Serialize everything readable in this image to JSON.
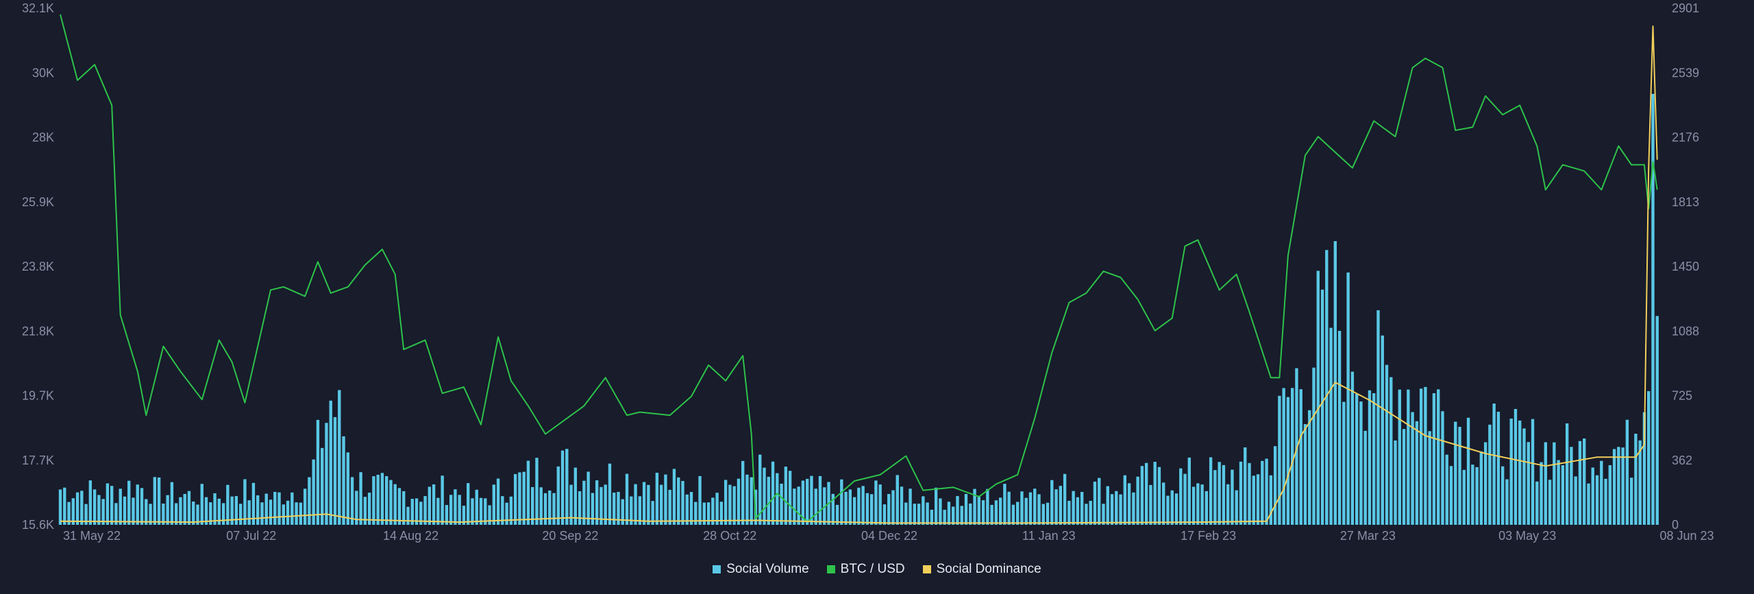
{
  "chart_data": {
    "type": "bar+line",
    "title": "",
    "x_ticks": [
      "31 May 22",
      "07 Jul 22",
      "14 Aug 22",
      "20 Sep 22",
      "28 Oct 22",
      "04 Dec 22",
      "11 Jan 23",
      "17 Feb 23",
      "27 Mar 23",
      "03 May 23",
      "08 Jun 23"
    ],
    "x_range": [
      "2022-05-31",
      "2023-06-08"
    ],
    "left_axis": {
      "series": "BTC / USD",
      "ticks": [
        "15.6K",
        "17.7K",
        "19.7K",
        "21.8K",
        "23.8K",
        "25.9K",
        "28K",
        "30K",
        "32.1K"
      ],
      "range": [
        15600,
        32100
      ]
    },
    "right_axis": {
      "series": "Social Volume / Social Dominance",
      "ticks": [
        "0",
        "362",
        "725",
        "1088",
        "1450",
        "1813",
        "2176",
        "2539",
        "2901"
      ],
      "range": [
        0,
        2901
      ]
    },
    "grid": false,
    "legend_position": "bottom-center",
    "series": [
      {
        "name": "BTC / USD",
        "kind": "line",
        "axis": "left",
        "color": "#2ec24a",
        "points": [
          [
            "2022-05-31",
            31900
          ],
          [
            "2022-06-04",
            29800
          ],
          [
            "2022-06-08",
            30300
          ],
          [
            "2022-06-12",
            29000
          ],
          [
            "2022-06-14",
            22300
          ],
          [
            "2022-06-18",
            20500
          ],
          [
            "2022-06-20",
            19100
          ],
          [
            "2022-06-24",
            21300
          ],
          [
            "2022-06-28",
            20500
          ],
          [
            "2022-07-03",
            19600
          ],
          [
            "2022-07-07",
            21500
          ],
          [
            "2022-07-10",
            20800
          ],
          [
            "2022-07-13",
            19500
          ],
          [
            "2022-07-19",
            23100
          ],
          [
            "2022-07-22",
            23200
          ],
          [
            "2022-07-27",
            22900
          ],
          [
            "2022-07-30",
            24000
          ],
          [
            "2022-08-02",
            23000
          ],
          [
            "2022-08-06",
            23200
          ],
          [
            "2022-08-10",
            23900
          ],
          [
            "2022-08-14",
            24400
          ],
          [
            "2022-08-17",
            23600
          ],
          [
            "2022-08-19",
            21200
          ],
          [
            "2022-08-24",
            21500
          ],
          [
            "2022-08-28",
            19800
          ],
          [
            "2022-09-02",
            20000
          ],
          [
            "2022-09-06",
            18800
          ],
          [
            "2022-09-10",
            21600
          ],
          [
            "2022-09-13",
            20200
          ],
          [
            "2022-09-17",
            19400
          ],
          [
            "2022-09-21",
            18500
          ],
          [
            "2022-09-25",
            18900
          ],
          [
            "2022-09-30",
            19400
          ],
          [
            "2022-10-05",
            20300
          ],
          [
            "2022-10-10",
            19100
          ],
          [
            "2022-10-13",
            19200
          ],
          [
            "2022-10-20",
            19100
          ],
          [
            "2022-10-25",
            19700
          ],
          [
            "2022-10-29",
            20700
          ],
          [
            "2022-11-02",
            20200
          ],
          [
            "2022-11-06",
            21000
          ],
          [
            "2022-11-08",
            18500
          ],
          [
            "2022-11-09",
            15800
          ],
          [
            "2022-11-14",
            16600
          ],
          [
            "2022-11-21",
            15700
          ],
          [
            "2022-11-27",
            16400
          ],
          [
            "2022-12-02",
            17000
          ],
          [
            "2022-12-08",
            17200
          ],
          [
            "2022-12-14",
            17800
          ],
          [
            "2022-12-18",
            16700
          ],
          [
            "2022-12-25",
            16800
          ],
          [
            "2022-12-31",
            16500
          ],
          [
            "2023-01-04",
            16900
          ],
          [
            "2023-01-09",
            17200
          ],
          [
            "2023-01-13",
            19000
          ],
          [
            "2023-01-17",
            21100
          ],
          [
            "2023-01-21",
            22700
          ],
          [
            "2023-01-25",
            23000
          ],
          [
            "2023-01-29",
            23700
          ],
          [
            "2023-02-02",
            23500
          ],
          [
            "2023-02-06",
            22800
          ],
          [
            "2023-02-10",
            21800
          ],
          [
            "2023-02-14",
            22200
          ],
          [
            "2023-02-17",
            24500
          ],
          [
            "2023-02-20",
            24700
          ],
          [
            "2023-02-25",
            23100
          ],
          [
            "2023-03-01",
            23600
          ],
          [
            "2023-03-04",
            22400
          ],
          [
            "2023-03-09",
            20300
          ],
          [
            "2023-03-11",
            20300
          ],
          [
            "2023-03-13",
            24200
          ],
          [
            "2023-03-17",
            27400
          ],
          [
            "2023-03-20",
            28000
          ],
          [
            "2023-03-24",
            27500
          ],
          [
            "2023-03-28",
            27000
          ],
          [
            "2023-04-02",
            28500
          ],
          [
            "2023-04-07",
            28000
          ],
          [
            "2023-04-11",
            30200
          ],
          [
            "2023-04-14",
            30500
          ],
          [
            "2023-04-18",
            30200
          ],
          [
            "2023-04-21",
            28200
          ],
          [
            "2023-04-25",
            28300
          ],
          [
            "2023-04-28",
            29300
          ],
          [
            "2023-05-02",
            28700
          ],
          [
            "2023-05-06",
            29000
          ],
          [
            "2023-05-10",
            27700
          ],
          [
            "2023-05-12",
            26300
          ],
          [
            "2023-05-16",
            27100
          ],
          [
            "2023-05-21",
            26900
          ],
          [
            "2023-05-25",
            26300
          ],
          [
            "2023-05-29",
            27700
          ],
          [
            "2023-06-01",
            27100
          ],
          [
            "2023-06-04",
            27100
          ],
          [
            "2023-06-05",
            25700
          ],
          [
            "2023-06-06",
            27200
          ],
          [
            "2023-06-07",
            26300
          ]
        ]
      },
      {
        "name": "Social Volume",
        "kind": "bar",
        "axis": "right",
        "color": "#5ac8e6",
        "points": [
          [
            "2022-05-31",
            200
          ],
          [
            "2022-06-10",
            180
          ],
          [
            "2022-06-17",
            220
          ],
          [
            "2022-06-26",
            170
          ],
          [
            "2022-07-03",
            160
          ],
          [
            "2022-07-12",
            190
          ],
          [
            "2022-07-20",
            150
          ],
          [
            "2022-07-28",
            230
          ],
          [
            "2022-08-02",
            700
          ],
          [
            "2022-08-05",
            520
          ],
          [
            "2022-08-08",
            250
          ],
          [
            "2022-08-16",
            190
          ],
          [
            "2022-08-22",
            170
          ],
          [
            "2022-08-29",
            200
          ],
          [
            "2022-09-06",
            140
          ],
          [
            "2022-09-13",
            230
          ],
          [
            "2022-09-20",
            300
          ],
          [
            "2022-09-27",
            330
          ],
          [
            "2022-10-04",
            280
          ],
          [
            "2022-10-12",
            250
          ],
          [
            "2022-10-20",
            230
          ],
          [
            "2022-10-28",
            200
          ],
          [
            "2022-11-05",
            250
          ],
          [
            "2022-11-09",
            300
          ],
          [
            "2022-11-16",
            230
          ],
          [
            "2022-11-24",
            190
          ],
          [
            "2022-12-03",
            170
          ],
          [
            "2022-12-11",
            200
          ],
          [
            "2022-12-19",
            150
          ],
          [
            "2022-12-27",
            140
          ],
          [
            "2023-01-04",
            160
          ],
          [
            "2023-01-12",
            200
          ],
          [
            "2023-01-20",
            210
          ],
          [
            "2023-01-28",
            200
          ],
          [
            "2023-02-05",
            240
          ],
          [
            "2023-02-13",
            260
          ],
          [
            "2023-02-21",
            270
          ],
          [
            "2023-03-01",
            290
          ],
          [
            "2023-03-08",
            350
          ],
          [
            "2023-03-13",
            700
          ],
          [
            "2023-03-18",
            950
          ],
          [
            "2023-03-24",
            1200
          ],
          [
            "2023-03-30",
            900
          ],
          [
            "2023-04-06",
            800
          ],
          [
            "2023-04-13",
            750
          ],
          [
            "2023-04-20",
            600
          ],
          [
            "2023-04-27",
            500
          ],
          [
            "2023-05-05",
            450
          ],
          [
            "2023-05-12",
            420
          ],
          [
            "2023-05-19",
            400
          ],
          [
            "2023-05-26",
            430
          ],
          [
            "2023-06-01",
            420
          ],
          [
            "2023-06-05",
            1100
          ],
          [
            "2023-06-06",
            2860
          ],
          [
            "2023-06-07",
            1800
          ]
        ]
      },
      {
        "name": "Social Dominance",
        "kind": "line",
        "axis": "right",
        "color": "#f1cf5a",
        "points": [
          [
            "2022-05-31",
            20
          ],
          [
            "2022-07-01",
            15
          ],
          [
            "2022-08-01",
            60
          ],
          [
            "2022-08-08",
            30
          ],
          [
            "2022-09-01",
            15
          ],
          [
            "2022-09-27",
            40
          ],
          [
            "2022-10-15",
            20
          ],
          [
            "2022-11-09",
            25
          ],
          [
            "2022-12-10",
            10
          ],
          [
            "2023-01-10",
            10
          ],
          [
            "2023-02-20",
            15
          ],
          [
            "2023-03-08",
            20
          ],
          [
            "2023-03-12",
            200
          ],
          [
            "2023-03-16",
            500
          ],
          [
            "2023-03-24",
            800
          ],
          [
            "2023-04-01",
            700
          ],
          [
            "2023-04-14",
            500
          ],
          [
            "2023-04-28",
            400
          ],
          [
            "2023-05-12",
            330
          ],
          [
            "2023-05-24",
            380
          ],
          [
            "2023-06-02",
            380
          ],
          [
            "2023-06-04",
            450
          ],
          [
            "2023-06-05",
            2000
          ],
          [
            "2023-06-06",
            2800
          ],
          [
            "2023-06-07",
            2050
          ]
        ]
      }
    ]
  },
  "legend": [
    {
      "label": "Social Volume",
      "color": "#5ac8e6"
    },
    {
      "label": "BTC / USD",
      "color": "#2ec24a"
    },
    {
      "label": "Social Dominance",
      "color": "#f1cf5a"
    }
  ]
}
